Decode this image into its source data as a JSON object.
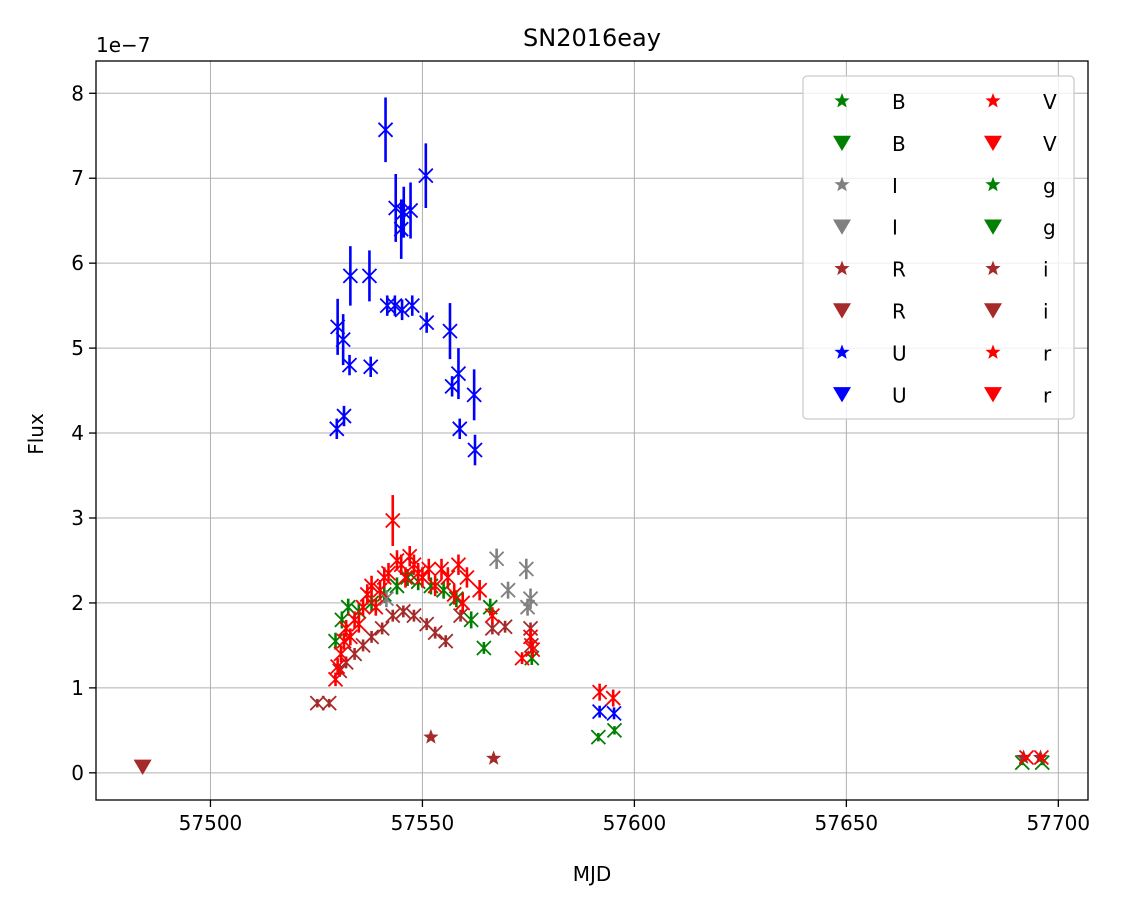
{
  "chart_data": {
    "type": "scatter",
    "title": "SN2016eay",
    "xlabel": "MJD",
    "ylabel": "Flux",
    "y_offset_label": "1e−7",
    "xlim": [
      57473,
      57707
    ],
    "ylim": [
      -0.32,
      8.38
    ],
    "xticks": [
      57500,
      57550,
      57600,
      57650,
      57700
    ],
    "yticks": [
      0,
      1,
      2,
      3,
      4,
      5,
      6,
      7,
      8
    ],
    "xtick_labels": [
      "57500",
      "57550",
      "57600",
      "57650",
      "57700"
    ],
    "ytick_labels": [
      "0",
      "1",
      "2",
      "3",
      "4",
      "5",
      "6",
      "7",
      "8"
    ],
    "grid": true,
    "legend": {
      "placement": "top-right",
      "columns": 2,
      "entries": [
        {
          "label": "B",
          "marker": "star",
          "color": "#008000"
        },
        {
          "label": "B",
          "marker": "triangle-down",
          "color": "#008000"
        },
        {
          "label": "I",
          "marker": "star",
          "color": "#808080"
        },
        {
          "label": "I",
          "marker": "triangle-down",
          "color": "#808080"
        },
        {
          "label": "R",
          "marker": "star",
          "color": "#a52a2a"
        },
        {
          "label": "R",
          "marker": "triangle-down",
          "color": "#a52a2a"
        },
        {
          "label": "U",
          "marker": "star",
          "color": "#0000ff"
        },
        {
          "label": "U",
          "marker": "triangle-down",
          "color": "#0000ff"
        },
        {
          "label": "V",
          "marker": "star",
          "color": "#ff0000"
        },
        {
          "label": "V",
          "marker": "triangle-down",
          "color": "#ff0000"
        },
        {
          "label": "g",
          "marker": "star",
          "color": "#008000"
        },
        {
          "label": "g",
          "marker": "triangle-down",
          "color": "#008000"
        },
        {
          "label": "i",
          "marker": "star",
          "color": "#a52a2a"
        },
        {
          "label": "i",
          "marker": "triangle-down",
          "color": "#a52a2a"
        },
        {
          "label": "r",
          "marker": "star",
          "color": "#ff0000"
        },
        {
          "label": "r",
          "marker": "triangle-down",
          "color": "#ff0000"
        }
      ]
    },
    "series": [
      {
        "name": "U",
        "color": "#0000ff",
        "marker": "x",
        "points": [
          [
            57529.8,
            4.05,
            0.12
          ],
          [
            57530,
            5.25,
            0.33
          ],
          [
            57531.3,
            5.1,
            0.3
          ],
          [
            57531.5,
            4.2,
            0.12
          ],
          [
            57532.8,
            4.8,
            0.12
          ],
          [
            57533,
            5.85,
            0.35
          ],
          [
            57537.5,
            5.85,
            0.3
          ],
          [
            57537.8,
            4.78,
            0.12
          ],
          [
            57541.3,
            7.57,
            0.38
          ],
          [
            57541.7,
            5.5,
            0.12
          ],
          [
            57543.5,
            5.5,
            0.12
          ],
          [
            57543.7,
            6.65,
            0.4
          ],
          [
            57545,
            6.4,
            0.35
          ],
          [
            57545.2,
            5.45,
            0.12
          ],
          [
            57545.6,
            6.6,
            0.3
          ],
          [
            57547.2,
            6.62,
            0.33
          ],
          [
            57547.6,
            5.5,
            0.12
          ],
          [
            57550.8,
            7.03,
            0.38
          ],
          [
            57551,
            5.3,
            0.12
          ],
          [
            57556.5,
            5.2,
            0.33
          ],
          [
            57557,
            4.55,
            0.12
          ],
          [
            57558.5,
            4.7,
            0.3
          ],
          [
            57558.8,
            4.05,
            0.12
          ],
          [
            57562.2,
            4.45,
            0.3
          ],
          [
            57562.4,
            3.8,
            0.18
          ],
          [
            57591.8,
            0.72,
            0.07
          ],
          [
            57595.2,
            0.7,
            0.07
          ]
        ]
      },
      {
        "name": "B",
        "color": "#008000",
        "marker": "x",
        "points": [
          [
            57529.5,
            1.55,
            0.1
          ],
          [
            57531,
            1.8,
            0.1
          ],
          [
            57532.5,
            1.95,
            0.1
          ],
          [
            57535,
            1.9,
            0.1
          ],
          [
            57538,
            2.0,
            0.1
          ],
          [
            57541,
            2.1,
            0.1
          ],
          [
            57544,
            2.2,
            0.1
          ],
          [
            57546.5,
            2.3,
            0.1
          ],
          [
            57549,
            2.25,
            0.1
          ],
          [
            57552,
            2.2,
            0.1
          ],
          [
            57555,
            2.15,
            0.1
          ],
          [
            57558,
            2.05,
            0.1
          ],
          [
            57561.5,
            1.8,
            0.1
          ],
          [
            57564.5,
            1.47,
            0.07
          ],
          [
            57566,
            1.95,
            0.1
          ],
          [
            57575.8,
            1.35,
            0.08
          ],
          [
            57591.5,
            0.42,
            0.05
          ],
          [
            57595.3,
            0.5,
            0.05
          ],
          [
            57691.5,
            0.12,
            0.03
          ],
          [
            57696.2,
            0.12,
            0.03
          ]
        ]
      },
      {
        "name": "I",
        "color": "#808080",
        "marker": "x",
        "points": [
          [
            57541.5,
            2.05,
            0.1
          ],
          [
            57567.5,
            2.52,
            0.12
          ],
          [
            57570.2,
            2.15,
            0.1
          ],
          [
            57574.5,
            2.4,
            0.12
          ],
          [
            57575.5,
            2.05,
            0.12
          ],
          [
            57574.8,
            1.95,
            0.1
          ]
        ]
      },
      {
        "name": "R",
        "color": "#a52a2a",
        "marker": "x",
        "points": [
          [
            57525.2,
            0.82,
            0.05
          ],
          [
            57528,
            0.82,
            0.05
          ],
          [
            57530.5,
            1.2,
            0.07
          ],
          [
            57532,
            1.3,
            0.07
          ],
          [
            57534,
            1.4,
            0.07
          ],
          [
            57536,
            1.5,
            0.07
          ],
          [
            57538,
            1.6,
            0.07
          ],
          [
            57540.5,
            1.7,
            0.07
          ],
          [
            57543,
            1.85,
            0.07
          ],
          [
            57545.5,
            1.9,
            0.07
          ],
          [
            57548,
            1.85,
            0.07
          ],
          [
            57551,
            1.75,
            0.07
          ],
          [
            57553,
            1.65,
            0.07
          ],
          [
            57555.5,
            1.55,
            0.07
          ],
          [
            57559,
            1.85,
            0.07
          ],
          [
            57566.5,
            1.7,
            0.07
          ],
          [
            57569.5,
            1.72,
            0.07
          ],
          [
            57575.5,
            1.7,
            0.07
          ],
          [
            57575.7,
            1.5,
            0.07
          ]
        ]
      },
      {
        "name": "r",
        "color": "#a52a2a",
        "marker": "star",
        "points": [
          [
            57552,
            0.42,
            0.03
          ],
          [
            57566.8,
            0.17,
            0.03
          ],
          [
            57691.8,
            0.18,
            0.03
          ],
          [
            57695.8,
            0.18,
            0.03
          ]
        ]
      },
      {
        "name": "V",
        "color": "#ff0000",
        "marker": "x",
        "points": [
          [
            57529.5,
            1.1,
            0.08
          ],
          [
            57530,
            1.25,
            0.1
          ],
          [
            57530.8,
            1.4,
            0.1
          ],
          [
            57531.5,
            1.55,
            0.1
          ],
          [
            57532,
            1.7,
            0.1
          ],
          [
            57533,
            1.6,
            0.1
          ],
          [
            57534,
            1.8,
            0.1
          ],
          [
            57535,
            1.75,
            0.1
          ],
          [
            57536,
            1.95,
            0.1
          ],
          [
            57537,
            2.1,
            0.12
          ],
          [
            57538,
            2.2,
            0.12
          ],
          [
            57539,
            1.95,
            0.1
          ],
          [
            57540,
            2.15,
            0.12
          ],
          [
            57541,
            2.3,
            0.12
          ],
          [
            57542,
            2.35,
            0.12
          ],
          [
            57543,
            2.97,
            0.3
          ],
          [
            57544,
            2.5,
            0.12
          ],
          [
            57545,
            2.45,
            0.12
          ],
          [
            57546,
            2.3,
            0.12
          ],
          [
            57547,
            2.55,
            0.12
          ],
          [
            57548,
            2.45,
            0.12
          ],
          [
            57549,
            2.35,
            0.12
          ],
          [
            57550,
            2.3,
            0.12
          ],
          [
            57551.5,
            2.4,
            0.12
          ],
          [
            57553,
            2.2,
            0.12
          ],
          [
            57554.5,
            2.4,
            0.12
          ],
          [
            57556,
            2.3,
            0.12
          ],
          [
            57557.5,
            2.1,
            0.12
          ],
          [
            57558.5,
            2.45,
            0.12
          ],
          [
            57559.5,
            2.0,
            0.12
          ],
          [
            57560.5,
            2.3,
            0.12
          ],
          [
            57563.5,
            2.15,
            0.12
          ],
          [
            57566.5,
            1.85,
            0.1
          ],
          [
            57573.5,
            1.35,
            0.07
          ],
          [
            57575.5,
            1.6,
            0.1
          ],
          [
            57576,
            1.45,
            0.1
          ],
          [
            57591.8,
            0.95,
            0.1
          ],
          [
            57595,
            0.88,
            0.1
          ],
          [
            57692.5,
            0.18,
            0.03
          ],
          [
            57696,
            0.18,
            0.03
          ]
        ]
      },
      {
        "name": "R",
        "color": "#a52a2a",
        "marker": "triangle-down",
        "points": [
          [
            57484,
            0.07,
            0
          ]
        ]
      }
    ]
  }
}
